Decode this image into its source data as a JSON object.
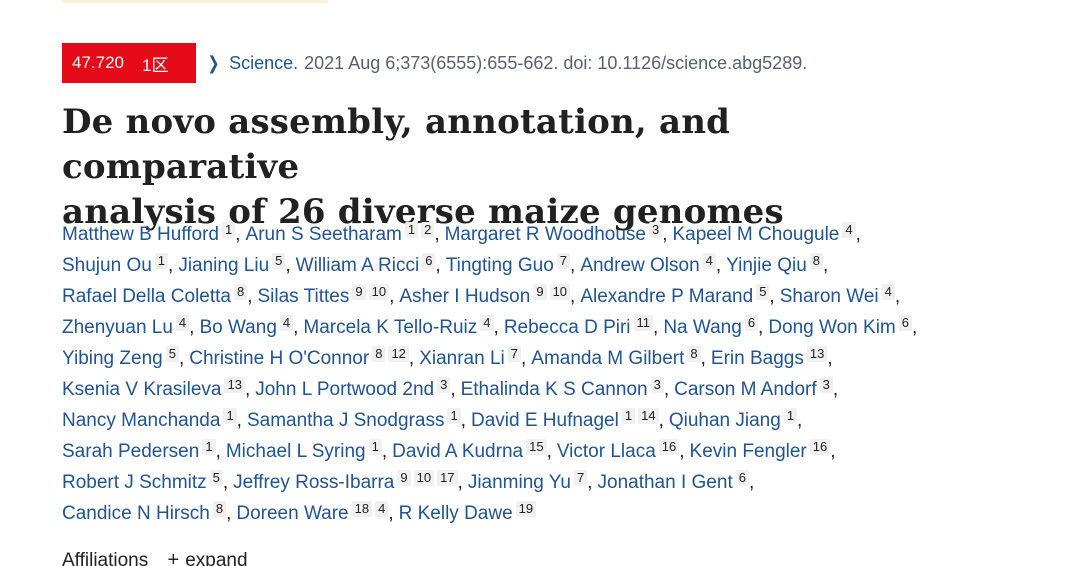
{
  "badge": {
    "impact_factor": "47.720",
    "zone": "1区",
    "color": "#e50a17"
  },
  "citation": {
    "journal": "Science.",
    "details": "2021 Aug 6;373(6555):655-662. doi: 10.1126/science.abg5289."
  },
  "title": {
    "line1": "De novo assembly, annotation, and comparative",
    "line2": "analysis of 26 diverse maize genomes"
  },
  "authors": [
    [
      {
        "name": "Matthew B Hufford",
        "aff": [
          "1"
        ]
      },
      {
        "name": "Arun S Seetharam",
        "aff": [
          "1",
          "2"
        ]
      },
      {
        "name": "Margaret R Woodhouse",
        "aff": [
          "3"
        ]
      },
      {
        "name": "Kapeel M Chougule",
        "aff": [
          "4"
        ]
      }
    ],
    [
      {
        "name": "Shujun Ou",
        "aff": [
          "1"
        ]
      },
      {
        "name": "Jianing Liu",
        "aff": [
          "5"
        ]
      },
      {
        "name": "William A Ricci",
        "aff": [
          "6"
        ]
      },
      {
        "name": "Tingting Guo",
        "aff": [
          "7"
        ]
      },
      {
        "name": "Andrew Olson",
        "aff": [
          "4"
        ]
      },
      {
        "name": "Yinjie Qiu",
        "aff": [
          "8"
        ]
      }
    ],
    [
      {
        "name": "Rafael Della Coletta",
        "aff": [
          "8"
        ]
      },
      {
        "name": "Silas Tittes",
        "aff": [
          "9",
          "10"
        ]
      },
      {
        "name": "Asher I Hudson",
        "aff": [
          "9",
          "10"
        ]
      },
      {
        "name": "Alexandre P Marand",
        "aff": [
          "5"
        ]
      },
      {
        "name": "Sharon Wei",
        "aff": [
          "4"
        ]
      }
    ],
    [
      {
        "name": "Zhenyuan Lu",
        "aff": [
          "4"
        ]
      },
      {
        "name": "Bo Wang",
        "aff": [
          "4"
        ]
      },
      {
        "name": "Marcela K Tello-Ruiz",
        "aff": [
          "4"
        ]
      },
      {
        "name": "Rebecca D Piri",
        "aff": [
          "11"
        ]
      },
      {
        "name": "Na Wang",
        "aff": [
          "6"
        ]
      },
      {
        "name": "Dong Won Kim",
        "aff": [
          "6"
        ]
      }
    ],
    [
      {
        "name": "Yibing Zeng",
        "aff": [
          "5"
        ]
      },
      {
        "name": "Christine H O'Connor",
        "aff": [
          "8",
          "12"
        ]
      },
      {
        "name": "Xianran Li",
        "aff": [
          "7"
        ]
      },
      {
        "name": "Amanda M Gilbert",
        "aff": [
          "8"
        ]
      },
      {
        "name": "Erin Baggs",
        "aff": [
          "13"
        ]
      }
    ],
    [
      {
        "name": "Ksenia V Krasileva",
        "aff": [
          "13"
        ]
      },
      {
        "name": "John L Portwood 2nd",
        "aff": [
          "3"
        ]
      },
      {
        "name": "Ethalinda K S Cannon",
        "aff": [
          "3"
        ]
      },
      {
        "name": "Carson M Andorf",
        "aff": [
          "3"
        ]
      }
    ],
    [
      {
        "name": "Nancy Manchanda",
        "aff": [
          "1"
        ]
      },
      {
        "name": "Samantha J Snodgrass",
        "aff": [
          "1"
        ]
      },
      {
        "name": "David E Hufnagel",
        "aff": [
          "1",
          "14"
        ]
      },
      {
        "name": "Qiuhan Jiang",
        "aff": [
          "1"
        ]
      }
    ],
    [
      {
        "name": "Sarah Pedersen",
        "aff": [
          "1"
        ]
      },
      {
        "name": "Michael L Syring",
        "aff": [
          "1"
        ]
      },
      {
        "name": "David A Kudrna",
        "aff": [
          "15"
        ]
      },
      {
        "name": "Victor Llaca",
        "aff": [
          "16"
        ]
      },
      {
        "name": "Kevin Fengler",
        "aff": [
          "16"
        ]
      }
    ],
    [
      {
        "name": "Robert J Schmitz",
        "aff": [
          "5"
        ]
      },
      {
        "name": "Jeffrey Ross-Ibarra",
        "aff": [
          "9",
          "10",
          "17"
        ]
      },
      {
        "name": "Jianming Yu",
        "aff": [
          "7"
        ]
      },
      {
        "name": "Jonathan I Gent",
        "aff": [
          "6"
        ]
      }
    ],
    [
      {
        "name": "Candice N Hirsch",
        "aff": [
          "8"
        ]
      },
      {
        "name": "Doreen Ware",
        "aff": [
          "18",
          "4"
        ]
      },
      {
        "name": "R Kelly Dawe",
        "aff": [
          "19"
        ]
      }
    ]
  ],
  "affiliations": {
    "label": "Affiliations",
    "toggle_icon": "+",
    "toggle_label": "expand"
  }
}
